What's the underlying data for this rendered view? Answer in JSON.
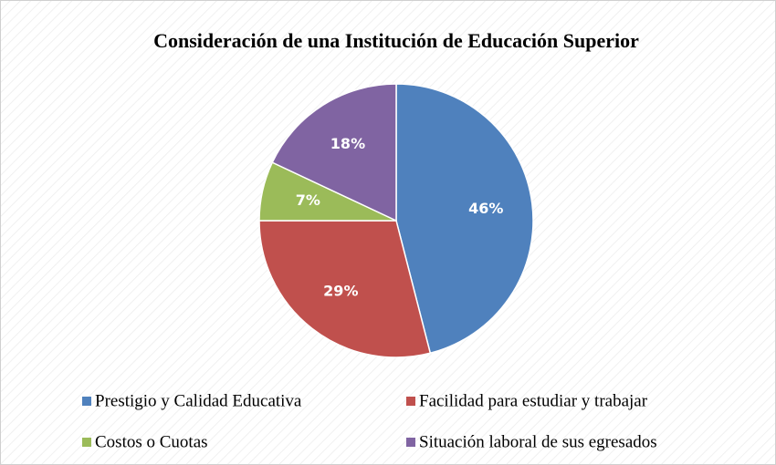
{
  "chart_data": {
    "type": "pie",
    "title": "Consideración de una Institución de Educación Superior",
    "categories": [
      "Prestigio y Calidad Educativa",
      "Facilidad para estudiar y trabajar",
      "Costos o Cuotas",
      "Situación laboral de sus egresados"
    ],
    "values": [
      46,
      29,
      7,
      18
    ],
    "value_labels": [
      "46%",
      "29%",
      "7%",
      "18%"
    ],
    "colors": [
      "#4f81bd",
      "#c0504d",
      "#9bbb59",
      "#8064a2"
    ],
    "legend": "bottom"
  }
}
